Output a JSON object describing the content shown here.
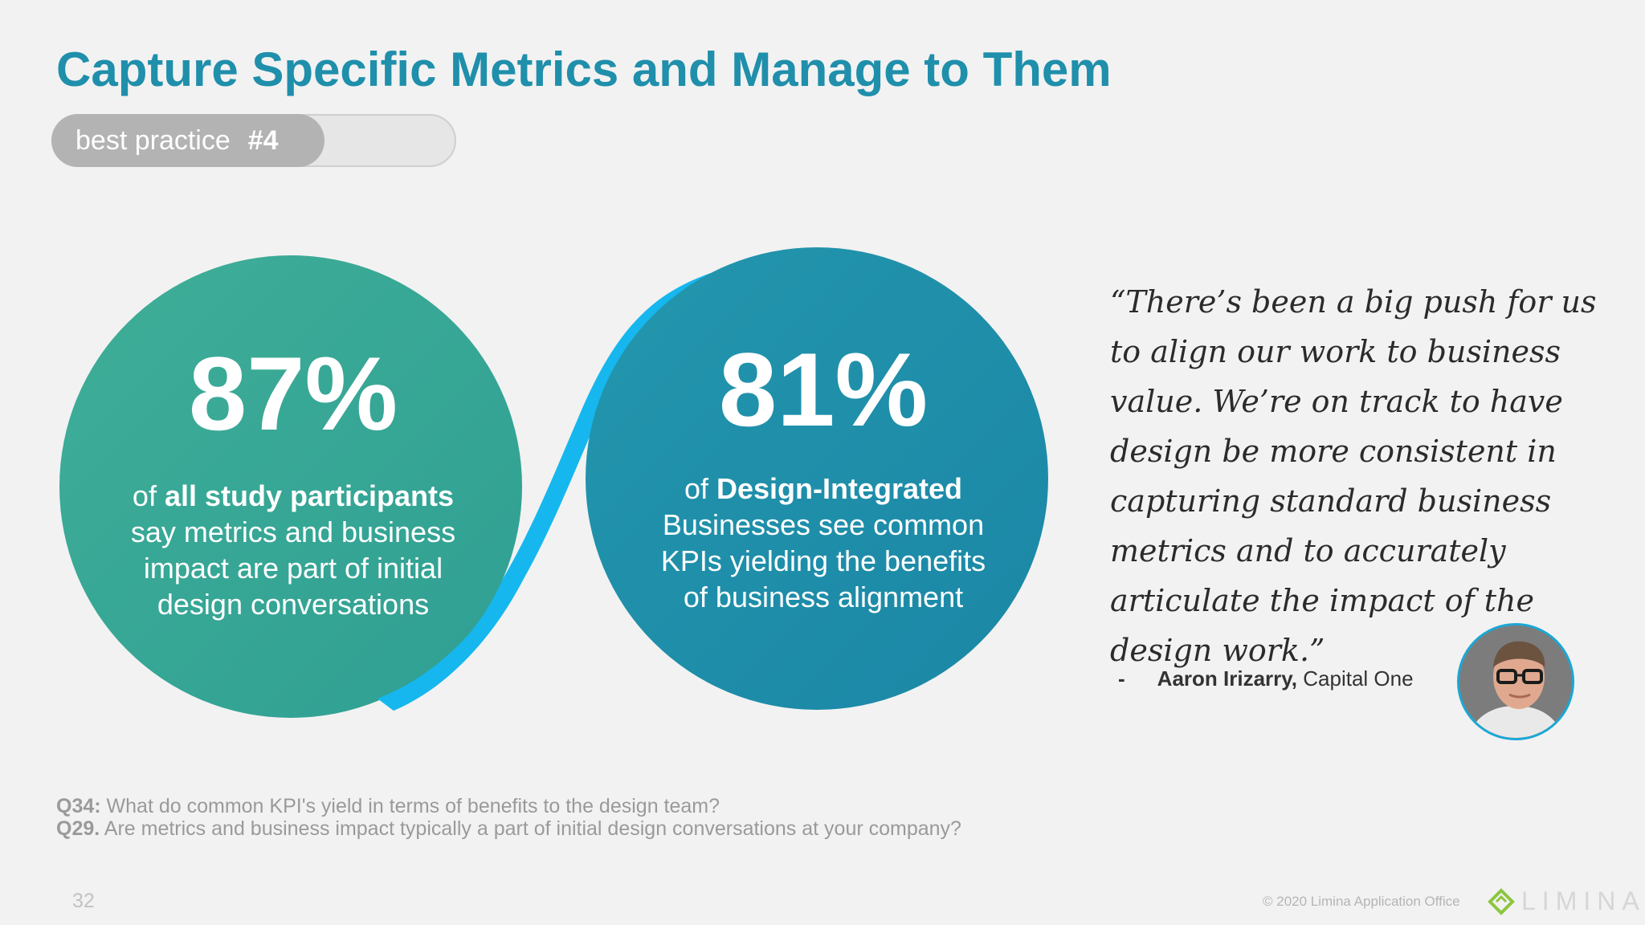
{
  "slide": {
    "title": "Capture Specific Metrics and Manage to Them",
    "badge": {
      "label": "best practice",
      "number": "#4"
    },
    "stats": [
      {
        "value": "87%",
        "prefix": "of",
        "emphasis": "all study participants",
        "lines": [
          "say metrics and business",
          "impact are part of initial",
          "design conversations"
        ]
      },
      {
        "value": "81%",
        "prefix": "of",
        "emphasis": "Design-Integrated",
        "lines": [
          "Businesses see common",
          "KPIs yielding the benefits",
          "of business alignment"
        ]
      }
    ],
    "quote": {
      "text": "“There’s been a big push for us to align our work to business value. We’re on track to have design be more consistent in capturing standard business metrics and to accurately articulate the impact of the design work.”",
      "dash": "-",
      "author": "Aaron Irizarry,",
      "company": "Capital One"
    },
    "questions": [
      {
        "id": "Q34:",
        "text": "What do common KPI's yield in terms of benefits to the design team?"
      },
      {
        "id": "Q29.",
        "text": "Are metrics and business impact typically a part of initial design conversations at your company?"
      }
    ],
    "footer": {
      "page_number": "32",
      "copyright": "© 2020  Limina Application Office",
      "logo": "LIMINA"
    },
    "colors": {
      "title": "#1f8fab",
      "circle_left": "#3aa89a",
      "circle_right": "#1f8fab",
      "ribbon": "#16b7ee"
    }
  }
}
